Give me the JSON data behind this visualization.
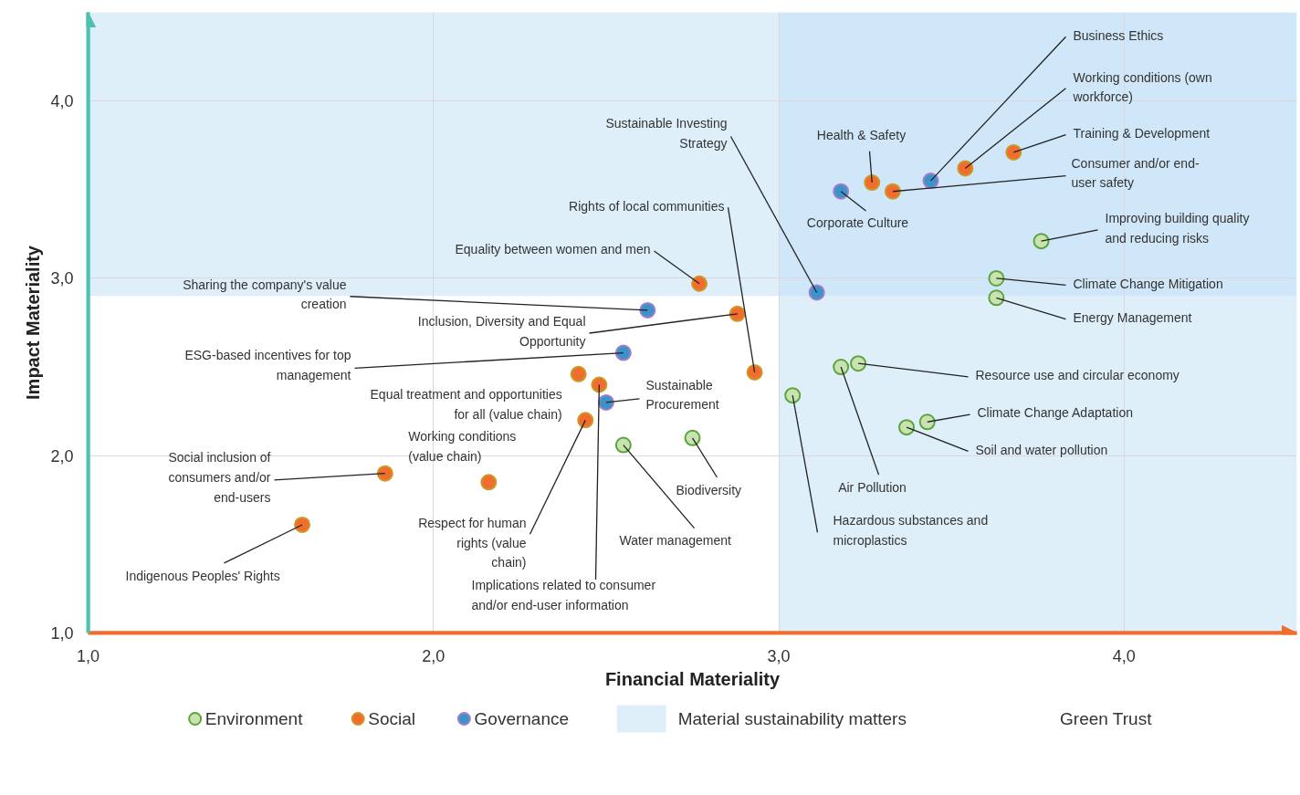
{
  "chart_data": {
    "type": "scatter",
    "xlabel": "Financial Materiality",
    "ylabel": "Impact Materiality",
    "xlim": [
      1.0,
      4.5
    ],
    "ylim": [
      1.0,
      4.5
    ],
    "xticks": [
      {
        "value": 1,
        "label": "1,0"
      },
      {
        "value": 2,
        "label": "2,0"
      },
      {
        "value": 3,
        "label": "3,0"
      },
      {
        "value": 4,
        "label": "4,0"
      }
    ],
    "yticks": [
      {
        "value": 1,
        "label": "1,0"
      },
      {
        "value": 2,
        "label": "2,0"
      },
      {
        "value": 3,
        "label": "3,0"
      },
      {
        "value": 4,
        "label": "4,0"
      }
    ],
    "grid": true,
    "marker": "circle",
    "legend": "bottom",
    "series": [
      {
        "name": "Environment",
        "color": "#c9e3b0",
        "x": [
          3.76,
          3.63,
          3.63,
          3.18,
          3.23,
          3.04,
          3.43,
          3.37,
          2.75,
          2.55
        ],
        "values": [
          3.21,
          3.0,
          2.89,
          2.5,
          2.52,
          2.34,
          2.19,
          2.16,
          2.1,
          2.06
        ]
      },
      {
        "name": "Social",
        "color": "#f26d2d",
        "x": [
          3.68,
          3.54,
          3.27,
          3.33,
          2.77,
          2.88,
          2.93,
          2.42,
          2.48,
          2.44,
          2.16,
          1.86,
          1.62
        ],
        "values": [
          3.71,
          3.62,
          3.54,
          3.49,
          2.97,
          2.8,
          2.47,
          2.46,
          2.4,
          2.2,
          1.85,
          1.9,
          1.61
        ]
      },
      {
        "name": "Governance",
        "color": "#3a93c9",
        "x": [
          3.44,
          3.18,
          3.11,
          2.62,
          2.55,
          2.5
        ],
        "values": [
          3.55,
          3.49,
          2.92,
          2.82,
          2.58,
          2.3
        ]
      }
    ],
    "bands": [
      {
        "axis": "y",
        "from": 2.9,
        "to": 4.5,
        "label": "Material sustainability matters",
        "color": "#bfe0f6"
      },
      {
        "axis": "x",
        "from": 3.0,
        "to": 4.5,
        "color": "#bfe0f6"
      }
    ],
    "annotations": [
      {
        "text": "Business Ethics",
        "x": 3.44,
        "y": 3.55
      },
      {
        "text": "Working conditions (own workforce)",
        "x": 3.54,
        "y": 3.62
      },
      {
        "text": "Training & Development",
        "x": 3.68,
        "y": 3.71
      },
      {
        "text": "Consumer and/or end-user safety",
        "x": 3.33,
        "y": 3.49
      },
      {
        "text": "Health & Safety",
        "x": 3.27,
        "y": 3.54
      },
      {
        "text": "Corporate Culture",
        "x": 3.18,
        "y": 3.49
      },
      {
        "text": "Improving building quality and reducing risks",
        "x": 3.76,
        "y": 3.21
      },
      {
        "text": "Climate Change Mitigation",
        "x": 3.63,
        "y": 3.0
      },
      {
        "text": "Energy Management",
        "x": 3.63,
        "y": 2.89
      },
      {
        "text": "Resource use and circular economy",
        "x": 3.23,
        "y": 2.52
      },
      {
        "text": "Climate Change Adaptation",
        "x": 3.43,
        "y": 2.19
      },
      {
        "text": "Soil and water pollution",
        "x": 3.37,
        "y": 2.16
      },
      {
        "text": "Air Pollution",
        "x": 3.18,
        "y": 2.5
      },
      {
        "text": "Hazardous substances and microplastics",
        "x": 3.04,
        "y": 2.34
      },
      {
        "text": "Biodiversity",
        "x": 2.75,
        "y": 2.1
      },
      {
        "text": "Water management",
        "x": 2.55,
        "y": 2.06
      },
      {
        "text": "Sustainable Investing Strategy",
        "x": 3.11,
        "y": 2.92
      },
      {
        "text": "Rights of local communities",
        "x": 2.93,
        "y": 2.47
      },
      {
        "text": "Equality between women and men",
        "x": 2.77,
        "y": 2.97
      },
      {
        "text": "Sharing the company's value creation",
        "x": 2.62,
        "y": 2.82
      },
      {
        "text": "Inclusion, Diversity and Equal Opportunity",
        "x": 2.88,
        "y": 2.8
      },
      {
        "text": "ESG-based incentives for top management",
        "x": 2.55,
        "y": 2.58
      },
      {
        "text": "Sustainable Procurement",
        "x": 2.5,
        "y": 2.3
      },
      {
        "text": "Equal treatment and opportunities for all (value chain)",
        "x": 2.42,
        "y": 2.46
      },
      {
        "text": "Working conditions (value chain)",
        "x": 2.16,
        "y": 1.85
      },
      {
        "text": "Social inclusion of consumers and/or end-users",
        "x": 1.86,
        "y": 1.9
      },
      {
        "text": "Respect for human rights (value chain)",
        "x": 2.44,
        "y": 2.2
      },
      {
        "text": "Implications related to consumer and/or end-user information",
        "x": 2.48,
        "y": 2.4
      },
      {
        "text": "Indigenous Peoples' Rights",
        "x": 1.62,
        "y": 1.61
      },
      "Green Trust"
    ]
  }
}
